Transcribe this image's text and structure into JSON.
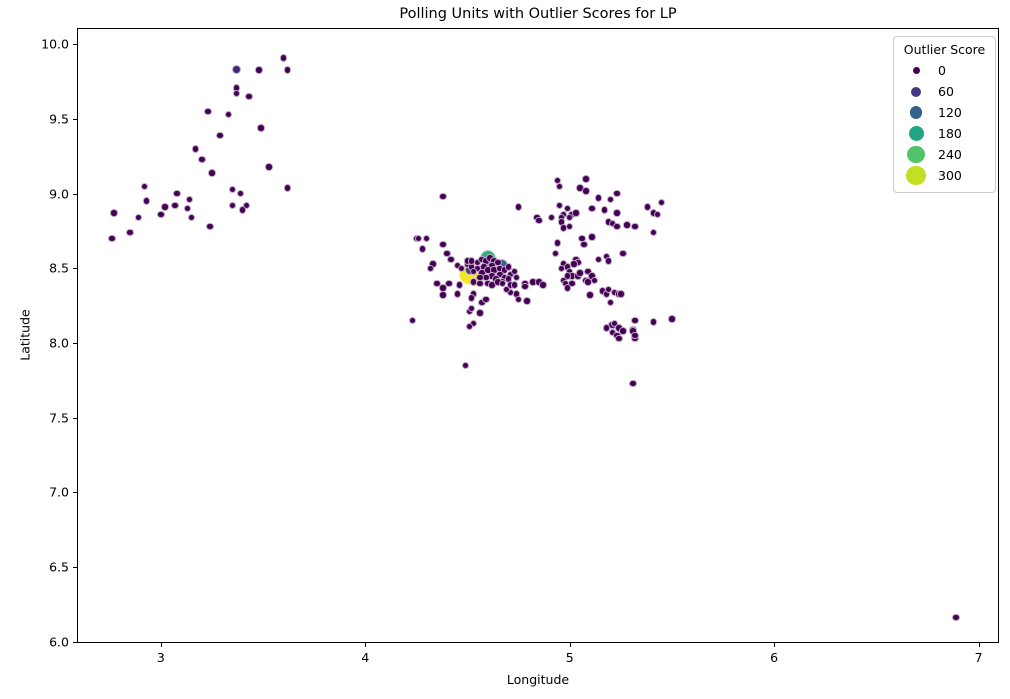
{
  "chart_data": {
    "type": "scatter",
    "title": "Polling Units with Outlier Scores for LP",
    "xlabel": "Longitude",
    "ylabel": "Latitude",
    "xlim": [
      2.59,
      7.1
    ],
    "ylim": [
      5.99,
      10.11
    ],
    "xticks": [
      3,
      4,
      5,
      6,
      7
    ],
    "ytick_labels": [
      "6.0",
      "6.5",
      "7.0",
      "7.5",
      "8.0",
      "8.5",
      "9.0",
      "9.5",
      "10.0"
    ],
    "yticks": [
      6.0,
      6.5,
      7.0,
      7.5,
      8.0,
      8.5,
      9.0,
      9.5,
      10.0
    ],
    "grid": false,
    "legend": {
      "title": "Outlier Score",
      "position": "upper right",
      "entries": [
        {
          "label": "0",
          "color": "#440154",
          "diameter": 7
        },
        {
          "label": "60",
          "color": "#453781",
          "diameter": 10
        },
        {
          "label": "120",
          "color": "#33638d",
          "diameter": 12.5
        },
        {
          "label": "180",
          "color": "#21a585",
          "diameter": 15
        },
        {
          "label": "240",
          "color": "#50c46a",
          "diameter": 17.5
        },
        {
          "label": "300",
          "color": "#c2df23",
          "diameter": 19.5
        }
      ]
    },
    "colormap": "viridis",
    "color_stops": [
      [
        0,
        "#440154"
      ],
      [
        60,
        "#453781"
      ],
      [
        120,
        "#33638d"
      ],
      [
        180,
        "#21a585"
      ],
      [
        240,
        "#50c46a"
      ],
      [
        300,
        "#c2df23"
      ],
      [
        330,
        "#fde725"
      ]
    ],
    "size_rule": {
      "diameter_at_0": 7.5,
      "diameter_at_300": 20.5
    },
    "points": [
      [
        4.51,
        8.46,
        325
      ],
      [
        4.6,
        8.57,
        200
      ],
      [
        4.67,
        8.52,
        110
      ],
      [
        4.51,
        8.49,
        60
      ],
      [
        3.37,
        9.83,
        40
      ],
      [
        5.21,
        8.12,
        25
      ],
      [
        3.6,
        9.91,
        0
      ],
      [
        3.48,
        9.83,
        0
      ],
      [
        3.62,
        9.83,
        0
      ],
      [
        3.37,
        9.71,
        0
      ],
      [
        3.37,
        9.67,
        0
      ],
      [
        3.43,
        9.65,
        0
      ],
      [
        3.23,
        9.55,
        0
      ],
      [
        3.33,
        9.53,
        0
      ],
      [
        3.49,
        9.44,
        0
      ],
      [
        3.29,
        9.39,
        0
      ],
      [
        3.17,
        9.3,
        0
      ],
      [
        3.2,
        9.23,
        0
      ],
      [
        3.53,
        9.18,
        0
      ],
      [
        3.25,
        9.14,
        0
      ],
      [
        2.92,
        9.05,
        0
      ],
      [
        3.62,
        9.04,
        0
      ],
      [
        3.35,
        9.03,
        0
      ],
      [
        3.39,
        9.0,
        0
      ],
      [
        3.08,
        9.0,
        0
      ],
      [
        2.93,
        8.95,
        0
      ],
      [
        3.14,
        8.96,
        0
      ],
      [
        3.07,
        8.92,
        0
      ],
      [
        3.35,
        8.92,
        0
      ],
      [
        3.42,
        8.92,
        0
      ],
      [
        3.13,
        8.9,
        0
      ],
      [
        3.02,
        8.91,
        0
      ],
      [
        3.4,
        8.89,
        0
      ],
      [
        3.0,
        8.86,
        0
      ],
      [
        2.77,
        8.87,
        0
      ],
      [
        2.89,
        8.84,
        0
      ],
      [
        3.15,
        8.84,
        0
      ],
      [
        3.24,
        8.78,
        0
      ],
      [
        2.85,
        8.74,
        0
      ],
      [
        2.76,
        8.7,
        0
      ],
      [
        4.38,
        8.98,
        0
      ],
      [
        4.75,
        8.91,
        0
      ],
      [
        4.84,
        8.84,
        0
      ],
      [
        4.85,
        8.82,
        0
      ],
      [
        4.91,
        8.84,
        0
      ],
      [
        4.94,
        9.09,
        0
      ],
      [
        4.95,
        9.05,
        0
      ],
      [
        5.08,
        9.1,
        0
      ],
      [
        5.05,
        9.04,
        0
      ],
      [
        5.08,
        9.02,
        0
      ],
      [
        5.14,
        8.97,
        0
      ],
      [
        5.2,
        8.96,
        0
      ],
      [
        5.23,
        9.0,
        0
      ],
      [
        5.11,
        8.9,
        0
      ],
      [
        5.17,
        8.89,
        0
      ],
      [
        5.38,
        8.91,
        0
      ],
      [
        5.45,
        8.94,
        0
      ],
      [
        5.41,
        8.87,
        0
      ],
      [
        5.43,
        8.86,
        0
      ],
      [
        5.23,
        8.87,
        0
      ],
      [
        4.25,
        8.7,
        0
      ],
      [
        4.26,
        8.7,
        0
      ],
      [
        4.3,
        8.7,
        0
      ],
      [
        4.28,
        8.63,
        0
      ],
      [
        4.38,
        8.66,
        0
      ],
      [
        4.4,
        8.6,
        0
      ],
      [
        4.42,
        8.56,
        0
      ],
      [
        4.33,
        8.53,
        0
      ],
      [
        4.32,
        8.5,
        0
      ],
      [
        4.5,
        8.53,
        0
      ],
      [
        4.52,
        8.51,
        0
      ],
      [
        4.95,
        8.92,
        0
      ],
      [
        4.99,
        8.9,
        0
      ],
      [
        4.97,
        8.86,
        0
      ],
      [
        5.01,
        8.86,
        0
      ],
      [
        5.03,
        8.87,
        0
      ],
      [
        4.96,
        8.84,
        0
      ],
      [
        5.0,
        8.84,
        0
      ],
      [
        4.96,
        8.81,
        0
      ],
      [
        5.0,
        8.78,
        0
      ],
      [
        4.97,
        8.77,
        0
      ],
      [
        5.19,
        8.81,
        0
      ],
      [
        5.21,
        8.8,
        0
      ],
      [
        5.23,
        8.78,
        0
      ],
      [
        5.28,
        8.79,
        0
      ],
      [
        5.32,
        8.78,
        0
      ],
      [
        5.41,
        8.74,
        0
      ],
      [
        5.06,
        8.7,
        0
      ],
      [
        5.11,
        8.71,
        0
      ],
      [
        5.07,
        8.66,
        0
      ],
      [
        4.94,
        8.67,
        0
      ],
      [
        4.93,
        8.6,
        0
      ],
      [
        5.03,
        8.56,
        0
      ],
      [
        5.04,
        8.54,
        0
      ],
      [
        5.02,
        8.53,
        0
      ],
      [
        5.14,
        8.56,
        0
      ],
      [
        5.18,
        8.58,
        0
      ],
      [
        5.19,
        8.55,
        0
      ],
      [
        5.26,
        8.6,
        0
      ],
      [
        4.97,
        8.53,
        0
      ],
      [
        4.99,
        8.51,
        0
      ],
      [
        4.96,
        8.5,
        0
      ],
      [
        5.0,
        8.48,
        0
      ],
      [
        5.01,
        8.45,
        0
      ],
      [
        4.99,
        8.45,
        0
      ],
      [
        4.97,
        8.42,
        0
      ],
      [
        5.04,
        8.45,
        0
      ],
      [
        5.05,
        8.47,
        0
      ],
      [
        5.09,
        8.48,
        0
      ],
      [
        5.11,
        8.45,
        0
      ],
      [
        5.08,
        8.42,
        0
      ],
      [
        5.12,
        8.42,
        0
      ],
      [
        4.45,
        8.52,
        0
      ],
      [
        4.47,
        8.5,
        0
      ],
      [
        4.5,
        8.55,
        0
      ],
      [
        4.52,
        8.55,
        0
      ],
      [
        4.55,
        8.54,
        0
      ],
      [
        4.57,
        8.56,
        0
      ],
      [
        4.59,
        8.55,
        0
      ],
      [
        4.61,
        8.57,
        0
      ],
      [
        4.63,
        8.55,
        0
      ],
      [
        4.65,
        8.54,
        0
      ],
      [
        4.62,
        8.52,
        0
      ],
      [
        4.58,
        8.51,
        0
      ],
      [
        4.55,
        8.5,
        0
      ],
      [
        4.53,
        8.48,
        0
      ],
      [
        4.57,
        8.47,
        0
      ],
      [
        4.6,
        8.49,
        0
      ],
      [
        4.63,
        8.49,
        0
      ],
      [
        4.66,
        8.5,
        0
      ],
      [
        4.68,
        8.49,
        0
      ],
      [
        4.7,
        8.51,
        0
      ],
      [
        4.66,
        8.46,
        0
      ],
      [
        4.62,
        8.45,
        0
      ],
      [
        4.59,
        8.44,
        0
      ],
      [
        4.56,
        8.44,
        0
      ],
      [
        4.64,
        8.43,
        0
      ],
      [
        4.68,
        8.44,
        0
      ],
      [
        4.71,
        8.46,
        0
      ],
      [
        4.73,
        8.48,
        0
      ],
      [
        4.7,
        8.43,
        0
      ],
      [
        4.74,
        8.44,
        0
      ],
      [
        4.67,
        8.41,
        0
      ],
      [
        4.53,
        8.41,
        0
      ],
      [
        4.56,
        8.4,
        0
      ],
      [
        4.6,
        8.4,
        0
      ],
      [
        4.62,
        8.39,
        0
      ],
      [
        4.65,
        8.41,
        0
      ],
      [
        4.67,
        8.4,
        0
      ],
      [
        4.71,
        8.39,
        0
      ],
      [
        4.73,
        8.39,
        0
      ],
      [
        4.71,
        8.34,
        0
      ],
      [
        4.69,
        8.36,
        0
      ],
      [
        4.74,
        8.33,
        0
      ],
      [
        4.78,
        8.4,
        0
      ],
      [
        4.78,
        8.38,
        0
      ],
      [
        4.82,
        8.41,
        0
      ],
      [
        4.85,
        8.41,
        0
      ],
      [
        4.87,
        8.39,
        0
      ],
      [
        4.35,
        8.4,
        0
      ],
      [
        4.38,
        8.37,
        0
      ],
      [
        4.41,
        8.4,
        0
      ],
      [
        4.46,
        8.39,
        0
      ],
      [
        4.38,
        8.32,
        0
      ],
      [
        4.45,
        8.33,
        0
      ],
      [
        4.53,
        8.33,
        0
      ],
      [
        4.52,
        8.3,
        0
      ],
      [
        4.57,
        8.27,
        0
      ],
      [
        4.59,
        8.29,
        0
      ],
      [
        4.75,
        8.29,
        0
      ],
      [
        4.79,
        8.28,
        0
      ],
      [
        4.23,
        8.15,
        0
      ],
      [
        4.51,
        8.21,
        0
      ],
      [
        4.52,
        8.23,
        0
      ],
      [
        4.56,
        8.2,
        0
      ],
      [
        4.53,
        8.13,
        0
      ],
      [
        4.51,
        8.11,
        0
      ],
      [
        4.49,
        7.85,
        0
      ],
      [
        5.16,
        8.35,
        0
      ],
      [
        5.18,
        8.33,
        0
      ],
      [
        5.19,
        8.36,
        0
      ],
      [
        5.1,
        8.32,
        0
      ],
      [
        5.22,
        8.34,
        0
      ],
      [
        5.24,
        8.33,
        0
      ],
      [
        5.25,
        8.33,
        0
      ],
      [
        5.2,
        8.27,
        0
      ],
      [
        5.18,
        8.1,
        0
      ],
      [
        5.22,
        8.13,
        0
      ],
      [
        5.24,
        8.1,
        0
      ],
      [
        5.21,
        8.07,
        0
      ],
      [
        5.23,
        8.05,
        0
      ],
      [
        5.26,
        8.08,
        0
      ],
      [
        5.32,
        8.15,
        0
      ],
      [
        5.31,
        8.09,
        0
      ],
      [
        5.32,
        8.03,
        0
      ],
      [
        5.41,
        8.14,
        0
      ],
      [
        5.5,
        8.16,
        0
      ],
      [
        5.31,
        8.08,
        0
      ],
      [
        5.32,
        8.05,
        0
      ],
      [
        5.24,
        8.03,
        0
      ],
      [
        5.31,
        7.73,
        0
      ],
      [
        4.98,
        8.4,
        0
      ],
      [
        5.01,
        8.4,
        0
      ],
      [
        4.99,
        8.37,
        0
      ],
      [
        5.09,
        8.41,
        0
      ],
      [
        6.89,
        6.16,
        0
      ]
    ]
  }
}
